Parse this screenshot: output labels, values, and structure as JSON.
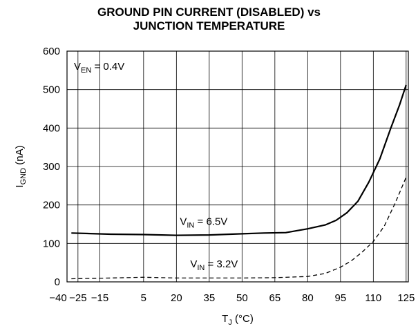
{
  "chart_data": {
    "type": "line",
    "title_line1": "GROUND PIN CURRENT (DISABLED) vs",
    "title_line2": "JUNCTION TEMPERATURE",
    "xlabel": {
      "main": "T",
      "sub": "J",
      "rest": " (°C)"
    },
    "ylabel": {
      "main": "I",
      "sub": "GND",
      "rest": " (nA)"
    },
    "xlim": [
      -30,
      126
    ],
    "ylim": [
      0,
      600
    ],
    "x_ticks": [
      -40,
      -25,
      -15,
      5,
      20,
      35,
      50,
      65,
      80,
      95,
      110,
      125
    ],
    "x_tick_labels": [
      "−40",
      "−25",
      "−15",
      "5",
      "20",
      "35",
      "50",
      "65",
      "80",
      "95",
      "110",
      "125"
    ],
    "y_ticks": [
      0,
      100,
      200,
      300,
      400,
      500,
      600
    ],
    "y_tick_labels": [
      "0",
      "100",
      "200",
      "300",
      "400",
      "500",
      "600"
    ],
    "grid": true,
    "annotations": [
      {
        "id": "ven",
        "main": "V",
        "sub": "EN",
        "rest": " = 0.4V"
      },
      {
        "id": "vin65",
        "main": "V",
        "sub": "IN",
        "rest": " = 6.5V"
      },
      {
        "id": "vin32",
        "main": "V",
        "sub": "IN",
        "rest": " = 3.2V"
      }
    ],
    "series": [
      {
        "style": "solid",
        "x": [
          -28,
          -10,
          5,
          20,
          35,
          50,
          60,
          70,
          80,
          88,
          93,
          98,
          103,
          108,
          113,
          118,
          122,
          125
        ],
        "y": [
          127,
          124,
          123,
          121,
          122,
          125,
          127,
          128,
          138,
          148,
          160,
          180,
          210,
          260,
          320,
          400,
          460,
          512
        ]
      },
      {
        "style": "dashed",
        "x": [
          -28,
          -10,
          5,
          20,
          35,
          50,
          65,
          80,
          88,
          95,
          100,
          105,
          110,
          115,
          120,
          125
        ],
        "y": [
          8,
          10,
          12,
          10,
          10,
          10,
          11,
          14,
          22,
          38,
          55,
          78,
          105,
          145,
          205,
          272
        ]
      }
    ]
  }
}
